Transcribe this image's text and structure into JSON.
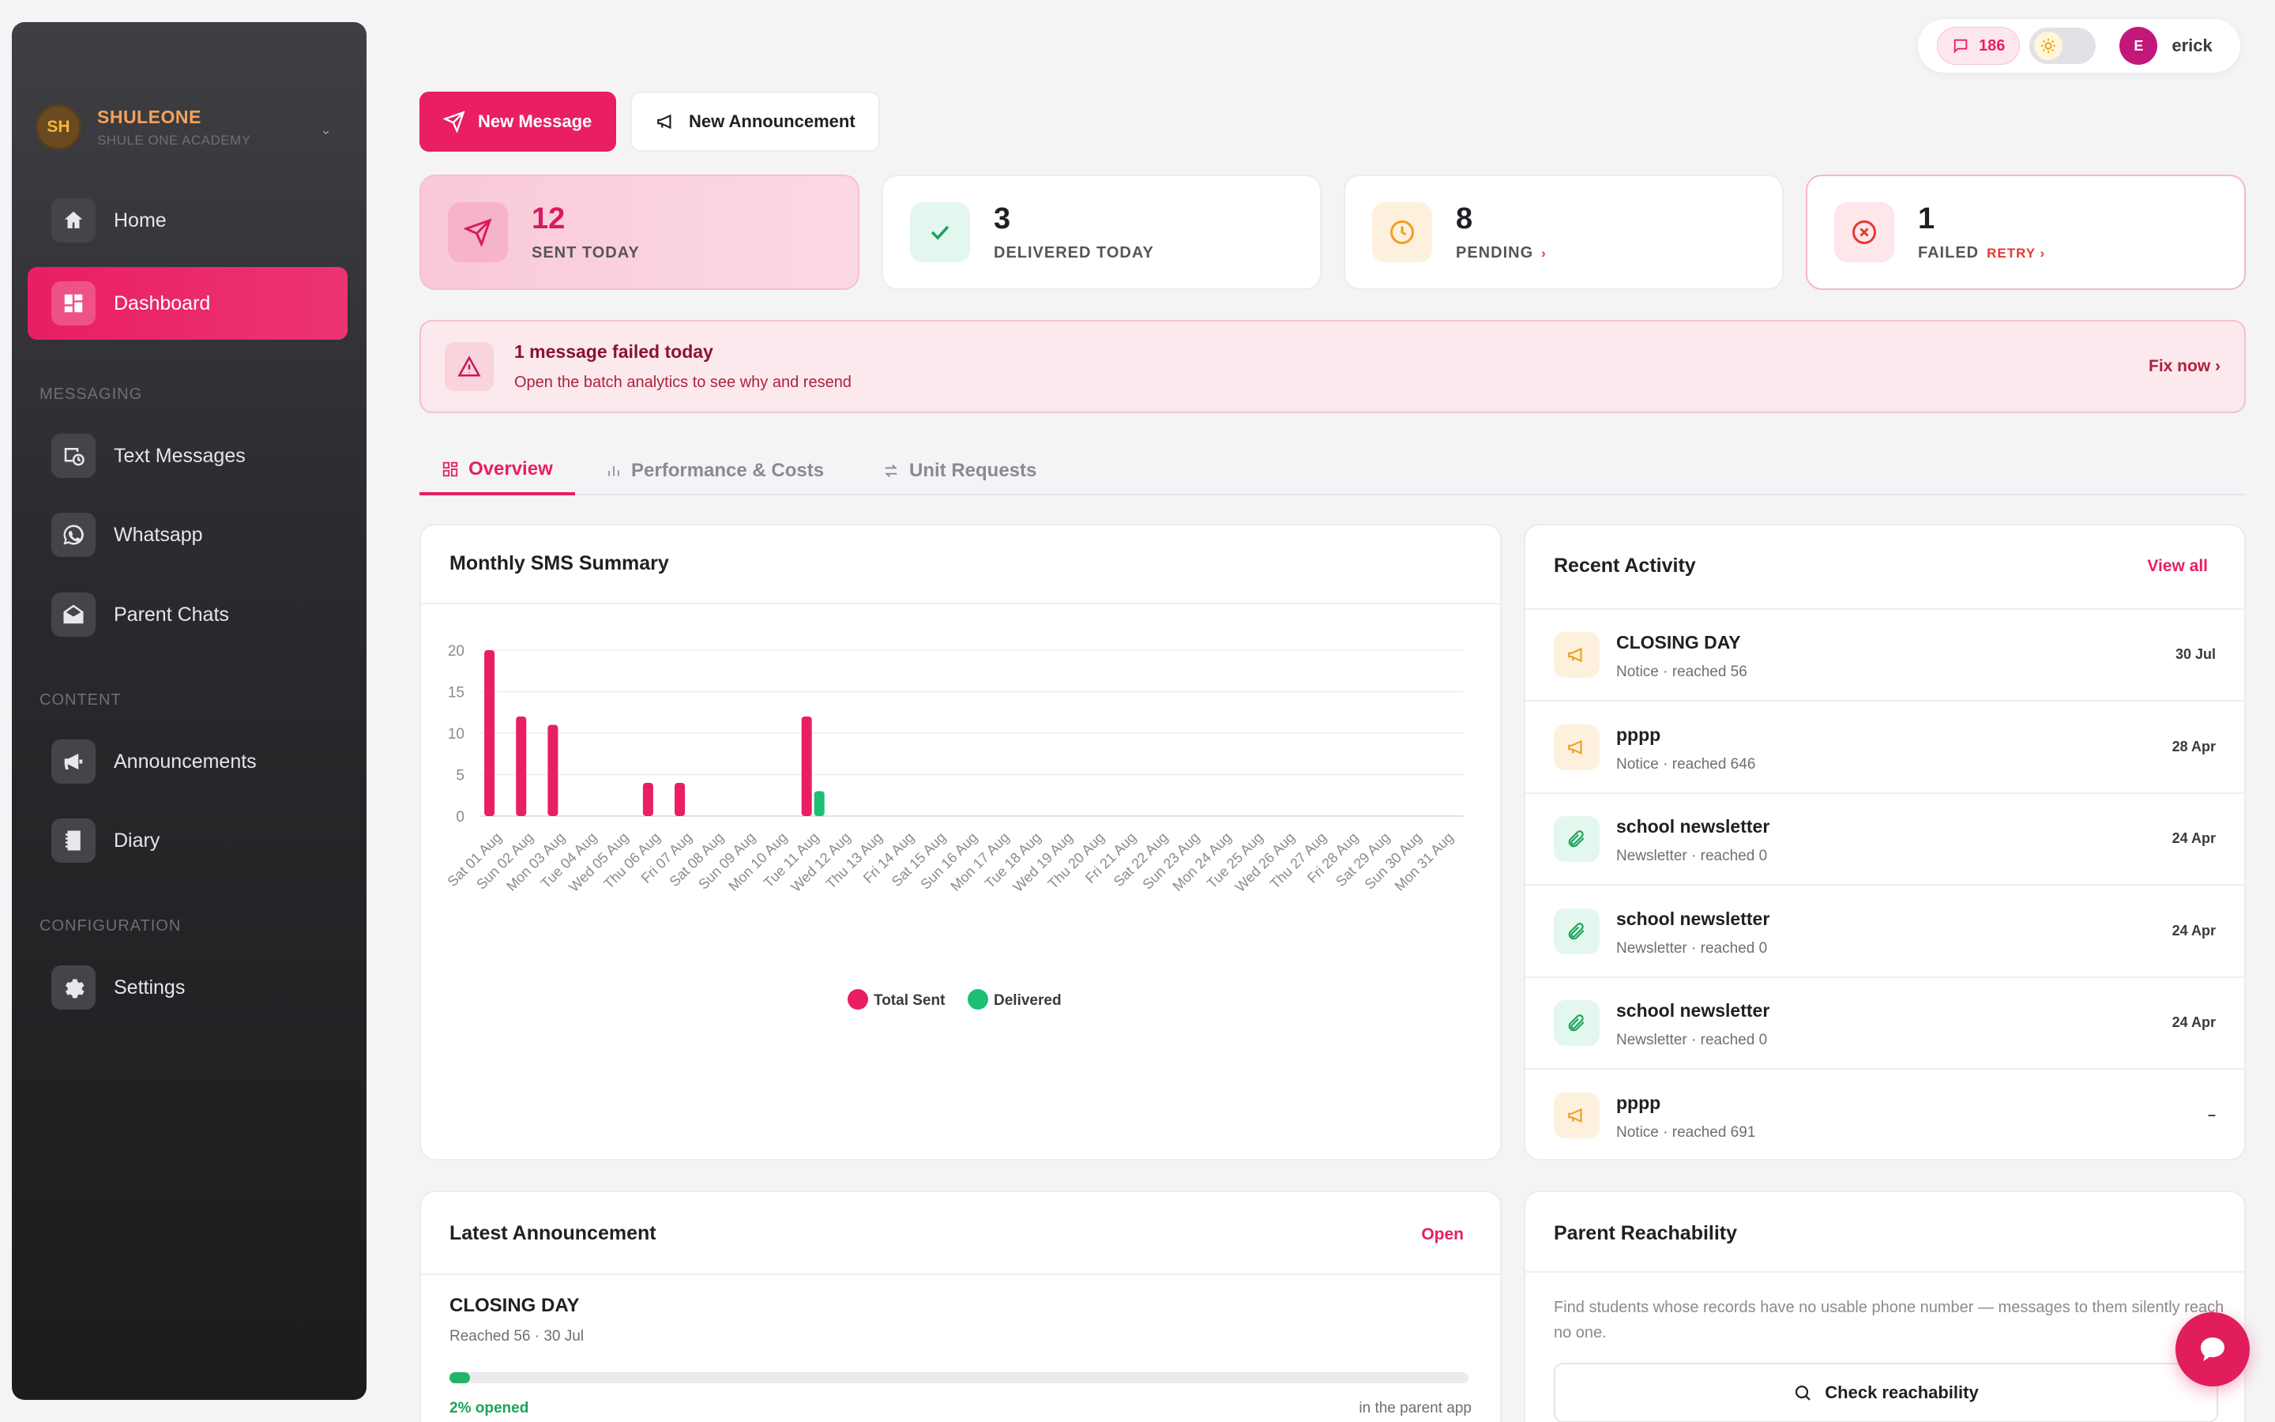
{
  "brand": {
    "initials": "SH",
    "name": "SHULEONE",
    "subtitle": "SHULE ONE ACADEMY"
  },
  "sidebar": {
    "sections": [
      {
        "label": "MESSAGING"
      },
      {
        "label": "CONTENT"
      },
      {
        "label": "CONFIGURATION"
      }
    ],
    "items": [
      {
        "label": "Home",
        "icon": "home-icon"
      },
      {
        "label": "Dashboard",
        "icon": "dashboard-icon",
        "active": true
      },
      {
        "label": "Text Messages",
        "icon": "sms-icon"
      },
      {
        "label": "Whatsapp",
        "icon": "whatsapp-icon"
      },
      {
        "label": "Parent Chats",
        "icon": "envelope-icon"
      },
      {
        "label": "Announcements",
        "icon": "megaphone-icon"
      },
      {
        "label": "Diary",
        "icon": "diary-icon"
      },
      {
        "label": "Settings",
        "icon": "gear-icon"
      }
    ]
  },
  "topbar": {
    "message_count": "186",
    "user_initial": "E",
    "user_name": "erick"
  },
  "actions": {
    "new_message": "New Message",
    "new_announcement": "New Announcement"
  },
  "stats": {
    "sent": {
      "value": "12",
      "label": "SENT TODAY"
    },
    "delivered": {
      "value": "3",
      "label": "DELIVERED TODAY"
    },
    "pending": {
      "value": "8",
      "label": "PENDING",
      "link": "›"
    },
    "failed": {
      "value": "1",
      "label": "FAILED",
      "link": "RETRY ›"
    }
  },
  "alert": {
    "title": "1 message failed today",
    "subtitle": "Open the batch analytics to see why and resend",
    "link": "Fix now ›"
  },
  "tabs": [
    {
      "label": "Overview",
      "active": true
    },
    {
      "label": "Performance & Costs"
    },
    {
      "label": "Unit Requests"
    }
  ],
  "monthly": {
    "title": "Monthly SMS Summary"
  },
  "chart_data": {
    "type": "bar",
    "title": "Monthly SMS Summary",
    "categories": [
      "Sat 01 Aug",
      "Sun 02 Aug",
      "Mon 03 Aug",
      "Tue 04 Aug",
      "Wed 05 Aug",
      "Thu 06 Aug",
      "Fri 07 Aug",
      "Sat 08 Aug",
      "Sun 09 Aug",
      "Mon 10 Aug",
      "Tue 11 Aug",
      "Wed 12 Aug",
      "Thu 13 Aug",
      "Fri 14 Aug",
      "Sat 15 Aug",
      "Sun 16 Aug",
      "Mon 17 Aug",
      "Tue 18 Aug",
      "Wed 19 Aug",
      "Thu 20 Aug",
      "Fri 21 Aug",
      "Sat 22 Aug",
      "Sun 23 Aug",
      "Mon 24 Aug",
      "Tue 25 Aug",
      "Wed 26 Aug",
      "Thu 27 Aug",
      "Fri 28 Aug",
      "Sat 29 Aug",
      "Sun 30 Aug",
      "Mon 31 Aug"
    ],
    "series": [
      {
        "name": "Total Sent",
        "color": "#e91e63",
        "values": [
          20,
          12,
          11,
          0,
          0,
          4,
          4,
          0,
          0,
          0,
          12,
          0,
          0,
          0,
          0,
          0,
          0,
          0,
          0,
          0,
          0,
          0,
          0,
          0,
          0,
          0,
          0,
          0,
          0,
          0,
          0
        ]
      },
      {
        "name": "Delivered",
        "color": "#1dbf73",
        "values": [
          0,
          0,
          0,
          0,
          0,
          0,
          0,
          0,
          0,
          0,
          3,
          0,
          0,
          0,
          0,
          0,
          0,
          0,
          0,
          0,
          0,
          0,
          0,
          0,
          0,
          0,
          0,
          0,
          0,
          0,
          0
        ]
      }
    ],
    "yticks": [
      0,
      5,
      10,
      15,
      20
    ],
    "ylim": [
      0,
      20
    ],
    "legend": "bottom"
  },
  "activity": {
    "title": "Recent Activity",
    "view_all": "View all",
    "items": [
      {
        "title": "CLOSING DAY",
        "subtitle": "Notice · reached 56",
        "date": "30 Jul",
        "icon": "megaphone-icon"
      },
      {
        "title": "pppp",
        "subtitle": "Notice · reached 646",
        "date": "28 Apr",
        "icon": "megaphone-icon"
      },
      {
        "title": "school newsletter",
        "subtitle": "Newsletter · reached 0",
        "date": "24 Apr",
        "icon": "paperclip-icon"
      },
      {
        "title": "school newsletter",
        "subtitle": "Newsletter · reached 0",
        "date": "24 Apr",
        "icon": "paperclip-icon"
      },
      {
        "title": "school newsletter",
        "subtitle": "Newsletter · reached 0",
        "date": "24 Apr",
        "icon": "paperclip-icon"
      },
      {
        "title": "pppp",
        "subtitle": "Notice · reached 691",
        "date": "–",
        "icon": "megaphone-icon"
      }
    ]
  },
  "announcement": {
    "title": "Latest Announcement",
    "open": "Open",
    "name": "CLOSING DAY",
    "meta": "Reached 56 · 30 Jul",
    "opened_percent": 2,
    "opened_label": "2% opened",
    "where": "in the parent app"
  },
  "reachability": {
    "title": "Parent Reachability",
    "description": "Find students whose records have no usable phone number — messages to them silently reach no one.",
    "button": "Check reachability"
  },
  "colors": {
    "accent": "#e91e63",
    "success": "#1dbf73",
    "warning": "#f5a623",
    "danger": "#e53935"
  }
}
